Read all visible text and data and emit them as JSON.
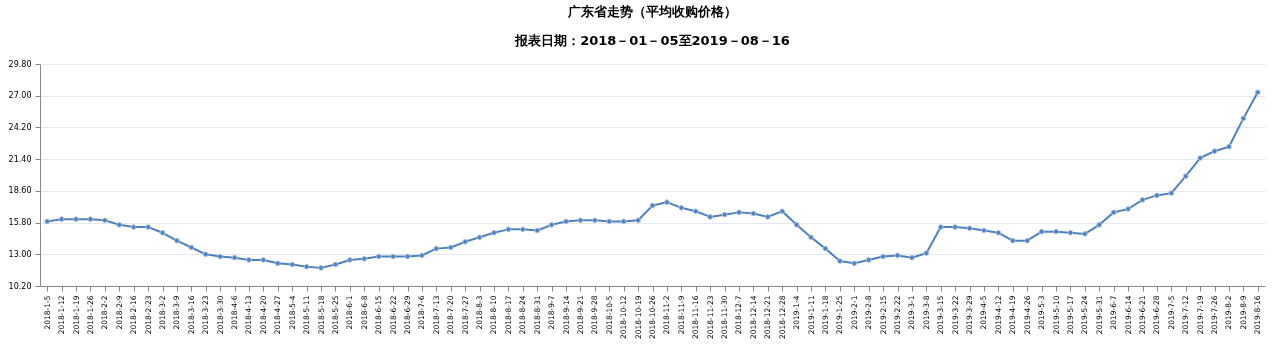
{
  "chart_data": {
    "type": "line",
    "title": "广东省走势（平均收购价格）",
    "subtitle": "报表日期：2018－01－05至2019－08－16",
    "categories": [
      "2018-1-5",
      "2018-1-12",
      "2018-1-19",
      "2018-1-26",
      "2018-2-2",
      "2018-2-9",
      "2018-2-16",
      "2018-2-23",
      "2018-3-2",
      "2018-3-9",
      "2018-3-16",
      "2018-3-23",
      "2018-3-30",
      "2018-4-6",
      "2018-4-13",
      "2018-4-20",
      "2018-4-27",
      "2018-5-4",
      "2018-5-11",
      "2018-5-18",
      "2018-5-25",
      "2018-6-1",
      "2018-6-8",
      "2018-6-15",
      "2018-6-22",
      "2018-6-29",
      "2018-7-6",
      "2018-7-13",
      "2018-7-20",
      "2018-7-27",
      "2018-8-3",
      "2018-8-10",
      "2018-8-17",
      "2018-8-24",
      "2018-8-31",
      "2018-9-7",
      "2018-9-14",
      "2018-9-21",
      "2018-9-28",
      "2018-10-5",
      "2018-10-12",
      "2018-10-19",
      "2018-10-26",
      "2018-11-2",
      "2018-11-9",
      "2018-11-16",
      "2018-11-23",
      "2018-11-30",
      "2018-12-7",
      "2018-12-14",
      "2018-12-21",
      "2018-12-28",
      "2019-1-4",
      "2019-1-11",
      "2019-1-18",
      "2019-1-25",
      "2019-2-1",
      "2019-2-8",
      "2019-2-15",
      "2019-2-22",
      "2019-3-1",
      "2019-3-8",
      "2019-3-15",
      "2019-3-22",
      "2019-3-29",
      "2019-4-5",
      "2019-4-12",
      "2019-4-19",
      "2019-4-26",
      "2019-5-3",
      "2019-5-10",
      "2019-5-17",
      "2019-5-24",
      "2019-5-31",
      "2019-6-7",
      "2019-6-14",
      "2019-6-21",
      "2019-6-28",
      "2019-7-5",
      "2019-7-12",
      "2019-7-19",
      "2019-7-26",
      "2019-8-2",
      "2019-8-9",
      "2019-8-16"
    ],
    "series": [
      {
        "color": "#4f81bd",
        "values": [
          15.9,
          16.1,
          16.1,
          16.1,
          16.0,
          15.6,
          15.4,
          15.4,
          14.9,
          14.2,
          13.6,
          13.0,
          12.8,
          12.7,
          12.5,
          12.5,
          12.2,
          12.1,
          11.9,
          11.8,
          12.1,
          12.5,
          12.6,
          12.8,
          12.8,
          12.8,
          12.9,
          13.5,
          13.6,
          14.1,
          14.5,
          14.9,
          15.2,
          15.2,
          15.1,
          15.6,
          15.9,
          16.0,
          16.0,
          15.9,
          15.9,
          16.0,
          17.3,
          17.6,
          17.1,
          16.8,
          16.3,
          16.5,
          16.7,
          16.6,
          16.3,
          16.8,
          15.6,
          14.5,
          13.5,
          12.4,
          12.2,
          12.5,
          12.8,
          12.9,
          12.7,
          13.1,
          15.4,
          15.4,
          15.3,
          15.1,
          14.9,
          14.2,
          14.2,
          15.0,
          15.0,
          14.9,
          14.8,
          15.6,
          16.7,
          17.0,
          17.8,
          18.2,
          18.4,
          19.9,
          21.5,
          22.1,
          22.5,
          25.0,
          27.3
        ]
      }
    ],
    "ylim": [
      10.2,
      29.8
    ],
    "yticks": [
      {
        "value": 10.2,
        "label": "10.20"
      },
      {
        "value": 13,
        "label": "13.00"
      },
      {
        "value": 15.8,
        "label": "15.80"
      },
      {
        "value": 18.6,
        "label": "18.60"
      },
      {
        "value": 21.4,
        "label": "21.40"
      },
      {
        "value": 24.2,
        "label": "24.20"
      },
      {
        "value": 27,
        "label": "27.00"
      },
      {
        "value": 29.8,
        "label": "29.80"
      }
    ],
    "grid": "y",
    "marker": "circle",
    "line_style": "solid"
  }
}
